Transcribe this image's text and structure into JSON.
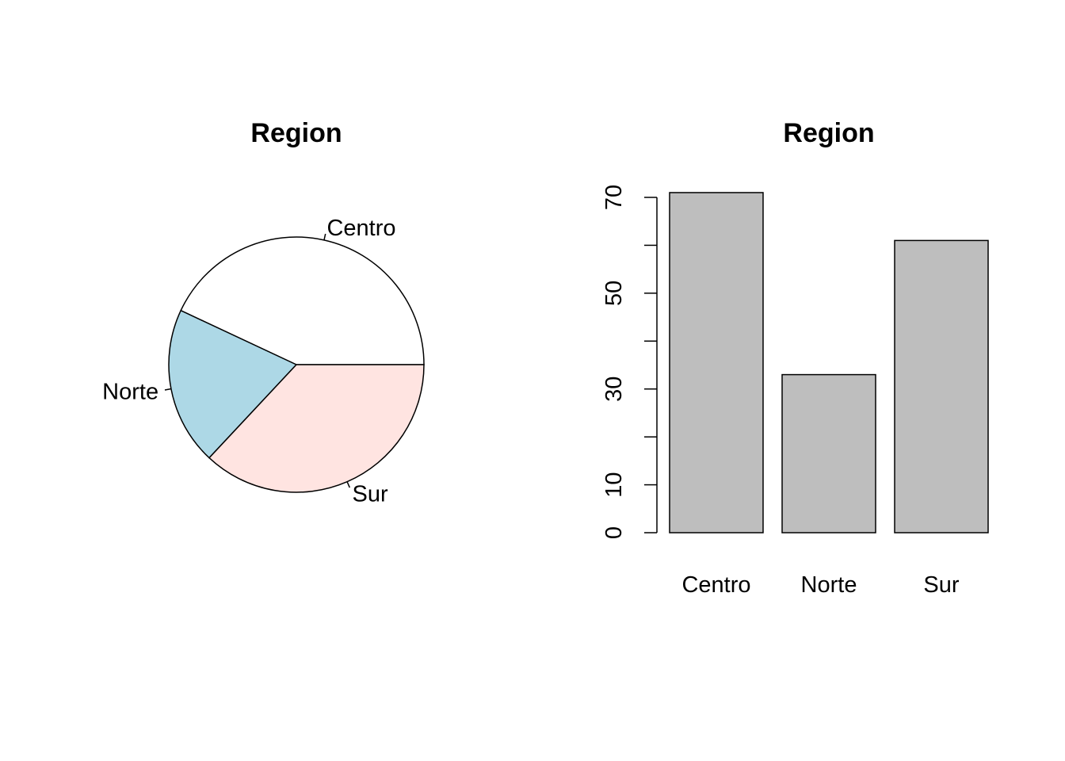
{
  "chart_data": [
    {
      "type": "pie",
      "title": "Region",
      "labels": [
        "Centro",
        "Norte",
        "Sur"
      ],
      "values": [
        71,
        33,
        61
      ],
      "colors": [
        "#ffffff",
        "#add8e6",
        "#ffe4e1"
      ],
      "start_angle_deg": 0,
      "direction": "counterclockwise"
    },
    {
      "type": "bar",
      "title": "Region",
      "categories": [
        "Centro",
        "Norte",
        "Sur"
      ],
      "values": [
        71,
        33,
        61
      ],
      "ylim": [
        0,
        70
      ],
      "yticks": [
        0,
        10,
        30,
        50,
        70
      ],
      "ytick_marks": [
        0,
        10,
        20,
        30,
        40,
        50,
        60,
        70
      ],
      "bar_color": "#bebebe",
      "xlabel": "",
      "ylabel": ""
    }
  ]
}
